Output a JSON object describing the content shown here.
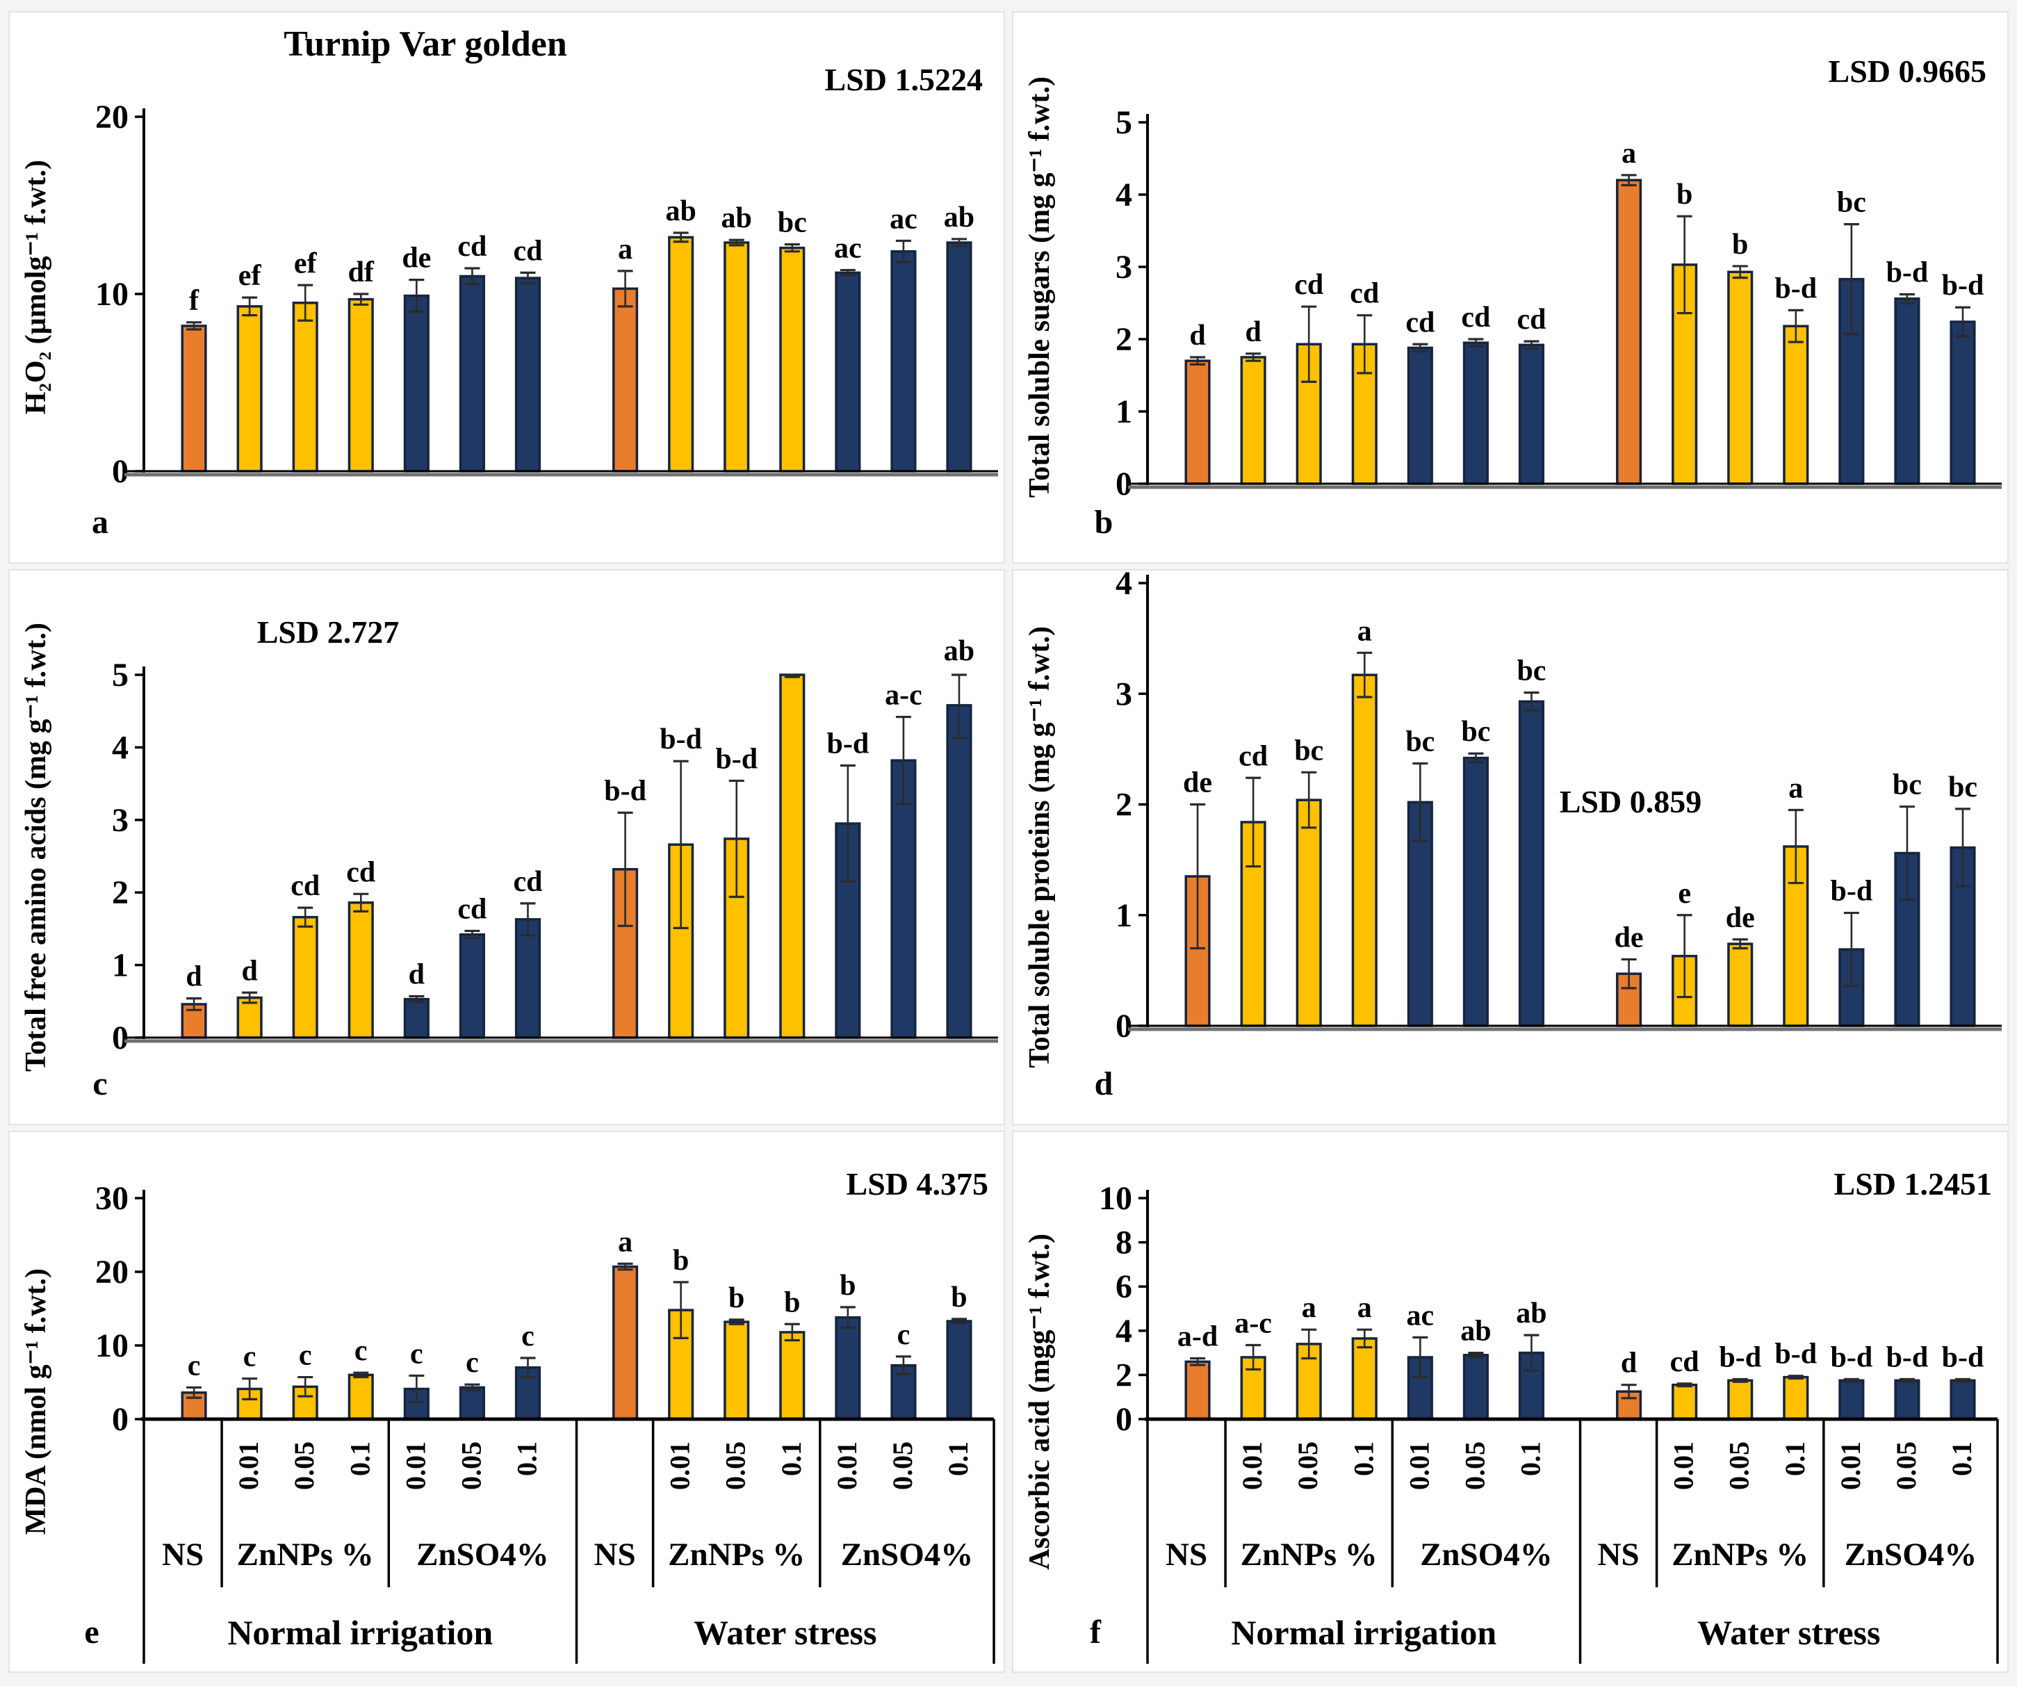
{
  "figure": {
    "title": "Turnip Var golden",
    "conditions": {
      "normal": "Normal irrigation",
      "stress": "Water stress"
    },
    "treatments": {
      "ns": "NS",
      "znnps": "ZnNPs %",
      "znso4": "ZnSO4%",
      "doses": [
        "0.01",
        "0.05",
        "0.1"
      ]
    },
    "colors": {
      "orange": "#E87D2E",
      "yellow": "#FFC000",
      "blue": "#1F3864",
      "bar_border": "#16243F",
      "axis": "#000000",
      "baseline_gray": "#707070"
    },
    "color_sequence": [
      "orange",
      "yellow",
      "yellow",
      "yellow",
      "blue",
      "blue",
      "blue",
      "orange",
      "yellow",
      "yellow",
      "yellow",
      "blue",
      "blue",
      "blue"
    ],
    "categories": [
      "Normal irrigation NS",
      "Normal irrigation ZnNPs 0.01%",
      "Normal irrigation ZnNPs 0.05%",
      "Normal irrigation ZnNPs 0.1%",
      "Normal irrigation ZnSO4 0.01%",
      "Normal irrigation ZnSO4 0.05%",
      "Normal irrigation ZnSO4 0.1%",
      "Water stress NS",
      "Water stress ZnNPs 0.01%",
      "Water stress ZnNPs 0.05%",
      "Water stress ZnNPs 0.1%",
      "Water stress ZnSO4 0.01%",
      "Water stress ZnSO4 0.05%",
      "Water stress ZnSO4 0.1%"
    ]
  },
  "chart_data": [
    {
      "type": "bar",
      "panel_letter": "a",
      "title": "Turnip Var golden",
      "lsd_label": "LSD 1.5224",
      "ylabel": "H₂O₂ (µmolg⁻¹ f.wt.)",
      "ylim": [
        0,
        20
      ],
      "yticks": [
        0,
        10,
        20
      ],
      "values": [
        8.2,
        9.3,
        9.5,
        9.7,
        9.9,
        11.0,
        10.9,
        10.3,
        13.2,
        12.9,
        12.6,
        11.2,
        12.4,
        12.9
      ],
      "errors": [
        0.2,
        0.5,
        1.0,
        0.3,
        0.9,
        0.45,
        0.3,
        1.0,
        0.25,
        0.15,
        0.2,
        0.15,
        0.6,
        0.2
      ],
      "sig_letters": [
        "f",
        "ef",
        "ef",
        "df",
        "de",
        "cd",
        "cd",
        "a",
        "ab",
        "ab",
        "bc",
        "ac",
        "ac",
        "ab"
      ]
    },
    {
      "type": "bar",
      "panel_letter": "b",
      "title": "",
      "lsd_label": "LSD 0.9665",
      "ylabel": "Total soluble sugars (mg g⁻¹ f.wt.)",
      "ylim": [
        0,
        5
      ],
      "yticks": [
        0,
        1,
        2,
        3,
        4,
        5
      ],
      "values": [
        1.7,
        1.75,
        1.93,
        1.93,
        1.88,
        1.95,
        1.92,
        4.2,
        3.03,
        2.93,
        2.18,
        2.83,
        2.56,
        2.24
      ],
      "errors": [
        0.05,
        0.05,
        0.52,
        0.4,
        0.05,
        0.05,
        0.05,
        0.07,
        0.67,
        0.08,
        0.22,
        0.76,
        0.06,
        0.2
      ],
      "sig_letters": [
        "d",
        "d",
        "cd",
        "cd",
        "cd",
        "cd",
        "cd",
        "a",
        "b",
        "b",
        "b-d",
        "bc",
        "b-d",
        "b-d"
      ]
    },
    {
      "type": "bar",
      "panel_letter": "c",
      "title": "",
      "lsd_label": "LSD 2.727",
      "ylabel": "Total free amino acids (mg g⁻¹ f.wt.)",
      "ylim": [
        0,
        5
      ],
      "yticks": [
        0,
        1,
        2,
        3,
        4,
        5
      ],
      "values": [
        0.46,
        0.55,
        1.66,
        1.86,
        0.53,
        1.42,
        1.63,
        2.32,
        2.66,
        2.74,
        5.0,
        2.95,
        3.82,
        4.58
      ],
      "errors": [
        0.08,
        0.07,
        0.13,
        0.12,
        0.04,
        0.05,
        0.22,
        0.78,
        1.15,
        0.8,
        0.03,
        0.8,
        0.6,
        0.45
      ],
      "sig_letters": [
        "d",
        "d",
        "cd",
        "cd",
        "d",
        "cd",
        "cd",
        "b-d",
        "b-d",
        "b-d",
        "",
        "b-d",
        "a-c",
        "ab"
      ]
    },
    {
      "type": "bar",
      "panel_letter": "d",
      "title": "",
      "lsd_label": "LSD  0.859",
      "ylabel": "Total soluble proteins (mg g⁻¹ f.wt.)",
      "ylim": [
        0,
        4
      ],
      "yticks": [
        0,
        1,
        2,
        3,
        4
      ],
      "values": [
        1.35,
        1.84,
        2.04,
        3.17,
        2.02,
        2.42,
        2.93,
        0.47,
        0.63,
        0.74,
        1.62,
        0.69,
        1.56,
        1.61
      ],
      "errors": [
        0.65,
        0.4,
        0.25,
        0.2,
        0.35,
        0.04,
        0.08,
        0.13,
        0.37,
        0.04,
        0.33,
        0.33,
        0.42,
        0.35
      ],
      "sig_letters": [
        "de",
        "cd",
        "bc",
        "a",
        "bc",
        "bc",
        "bc",
        "de",
        "e",
        "de",
        "a",
        "b-d",
        "bc",
        "bc"
      ]
    },
    {
      "type": "bar",
      "panel_letter": "e",
      "title": "",
      "lsd_label": "LSD 4.375",
      "ylabel": "MDA (nmol g⁻¹ f.wt.)",
      "ylim": [
        0,
        30
      ],
      "yticks": [
        0,
        10,
        20,
        30
      ],
      "values": [
        3.6,
        4.1,
        4.4,
        6.0,
        4.1,
        4.3,
        7.0,
        20.7,
        14.8,
        13.2,
        11.8,
        13.8,
        7.3,
        13.3
      ],
      "errors": [
        0.7,
        1.4,
        1.3,
        0.3,
        1.8,
        0.4,
        1.3,
        0.4,
        3.8,
        0.3,
        1.1,
        1.4,
        1.2,
        0.3
      ],
      "sig_letters": [
        "c",
        "c",
        "c",
        "c",
        "c",
        "c",
        "c",
        "a",
        "b",
        "b",
        "b",
        "b",
        "c",
        "b"
      ]
    },
    {
      "type": "bar",
      "panel_letter": "f",
      "title": "",
      "lsd_label": "LSD 1.2451",
      "ylabel": "Ascorbic acid (mgg⁻¹ f.wt.)",
      "ylim": [
        0,
        10
      ],
      "yticks": [
        0,
        2,
        4,
        6,
        8,
        10
      ],
      "values": [
        2.6,
        2.8,
        3.4,
        3.65,
        2.8,
        2.9,
        3.0,
        1.25,
        1.55,
        1.75,
        1.9,
        1.75,
        1.75,
        1.75
      ],
      "errors": [
        0.15,
        0.55,
        0.65,
        0.4,
        0.9,
        0.1,
        0.8,
        0.3,
        0.06,
        0.06,
        0.06,
        0.06,
        0.06,
        0.06
      ],
      "sig_letters": [
        "a-d",
        "a-c",
        "a",
        "a",
        "ac",
        "ab",
        "ab",
        "d",
        "cd",
        "b-d",
        "b-d",
        "b-d",
        "b-d",
        "b-d"
      ]
    }
  ]
}
